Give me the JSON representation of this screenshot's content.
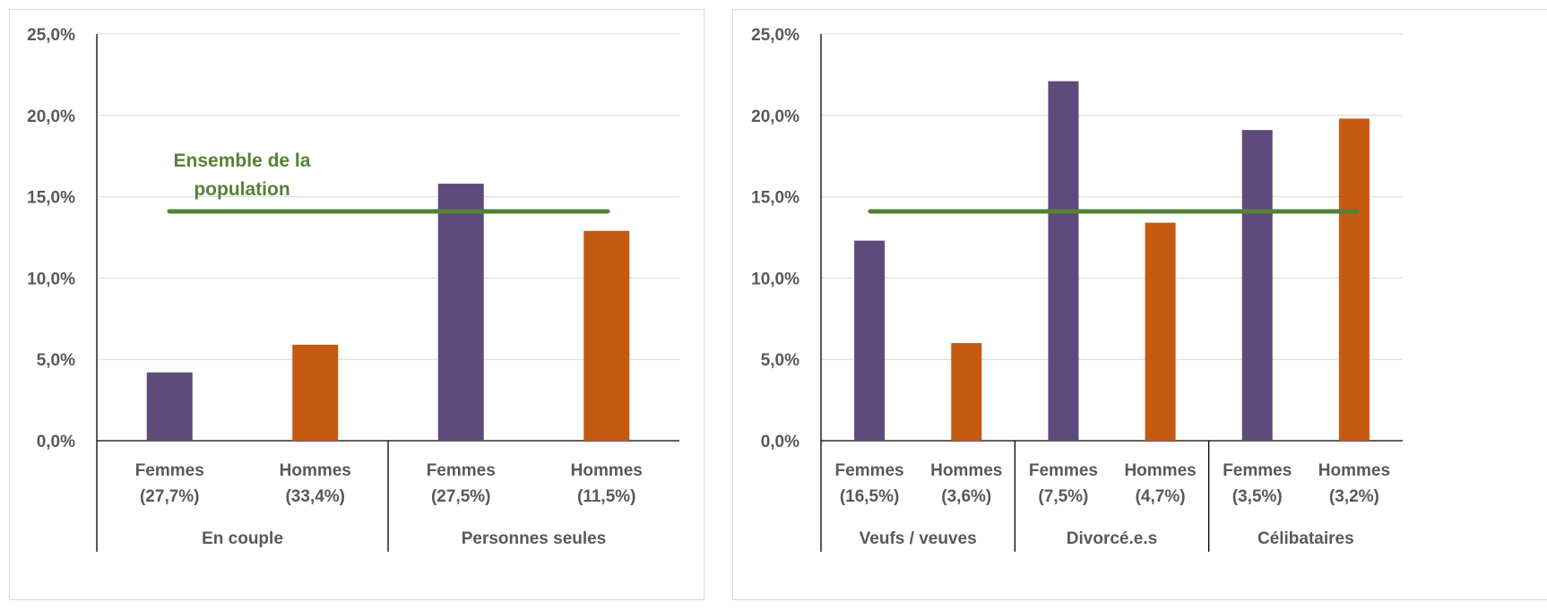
{
  "colors": {
    "femmes": "#5e4b7b",
    "hommes": "#c55a11",
    "reference": "#548235",
    "grid": "#d9d9d9",
    "axis": "#000000"
  },
  "chart_data": [
    {
      "type": "bar",
      "reference_line": {
        "value": 14.1,
        "label_line1": "Ensemble de la",
        "label_line2": "population"
      },
      "ylim": [
        0,
        25
      ],
      "y_ticks": [
        "0,0%",
        "5,0%",
        "10,0%",
        "15,0%",
        "20,0%",
        "25,0%"
      ],
      "grid": true,
      "groups": [
        {
          "name": "En couple",
          "bars": [
            {
              "label1": "Femmes",
              "label2": "(27,7%)",
              "value": 4.2,
              "series": "femmes"
            },
            {
              "label1": "Hommes",
              "label2": "(33,4%)",
              "value": 5.9,
              "series": "hommes"
            }
          ]
        },
        {
          "name": "Personnes seules",
          "bars": [
            {
              "label1": "Femmes",
              "label2": "(27,5%)",
              "value": 15.8,
              "series": "femmes"
            },
            {
              "label1": "Hommes",
              "label2": "(11,5%)",
              "value": 12.9,
              "series": "hommes"
            }
          ]
        }
      ]
    },
    {
      "type": "bar",
      "reference_line": {
        "value": 14.1
      },
      "ylim": [
        0,
        25
      ],
      "y_ticks": [
        "0,0%",
        "5,0%",
        "10,0%",
        "15,0%",
        "20,0%",
        "25,0%"
      ],
      "grid": true,
      "groups": [
        {
          "name": "Veufs / veuves",
          "bars": [
            {
              "label1": "Femmes",
              "label2": "(16,5%)",
              "value": 12.3,
              "series": "femmes"
            },
            {
              "label1": "Hommes",
              "label2": "(3,6%)",
              "value": 6.0,
              "series": "hommes"
            }
          ]
        },
        {
          "name": "Divorcé.e.s",
          "bars": [
            {
              "label1": "Femmes",
              "label2": "(7,5%)",
              "value": 22.1,
              "series": "femmes"
            },
            {
              "label1": "Hommes",
              "label2": "(4,7%)",
              "value": 13.4,
              "series": "hommes"
            }
          ]
        },
        {
          "name": "Célibataires",
          "bars": [
            {
              "label1": "Femmes",
              "label2": "(3,5%)",
              "value": 19.1,
              "series": "femmes"
            },
            {
              "label1": "Hommes",
              "label2": "(3,2%)",
              "value": 19.8,
              "series": "hommes"
            }
          ]
        }
      ]
    }
  ]
}
